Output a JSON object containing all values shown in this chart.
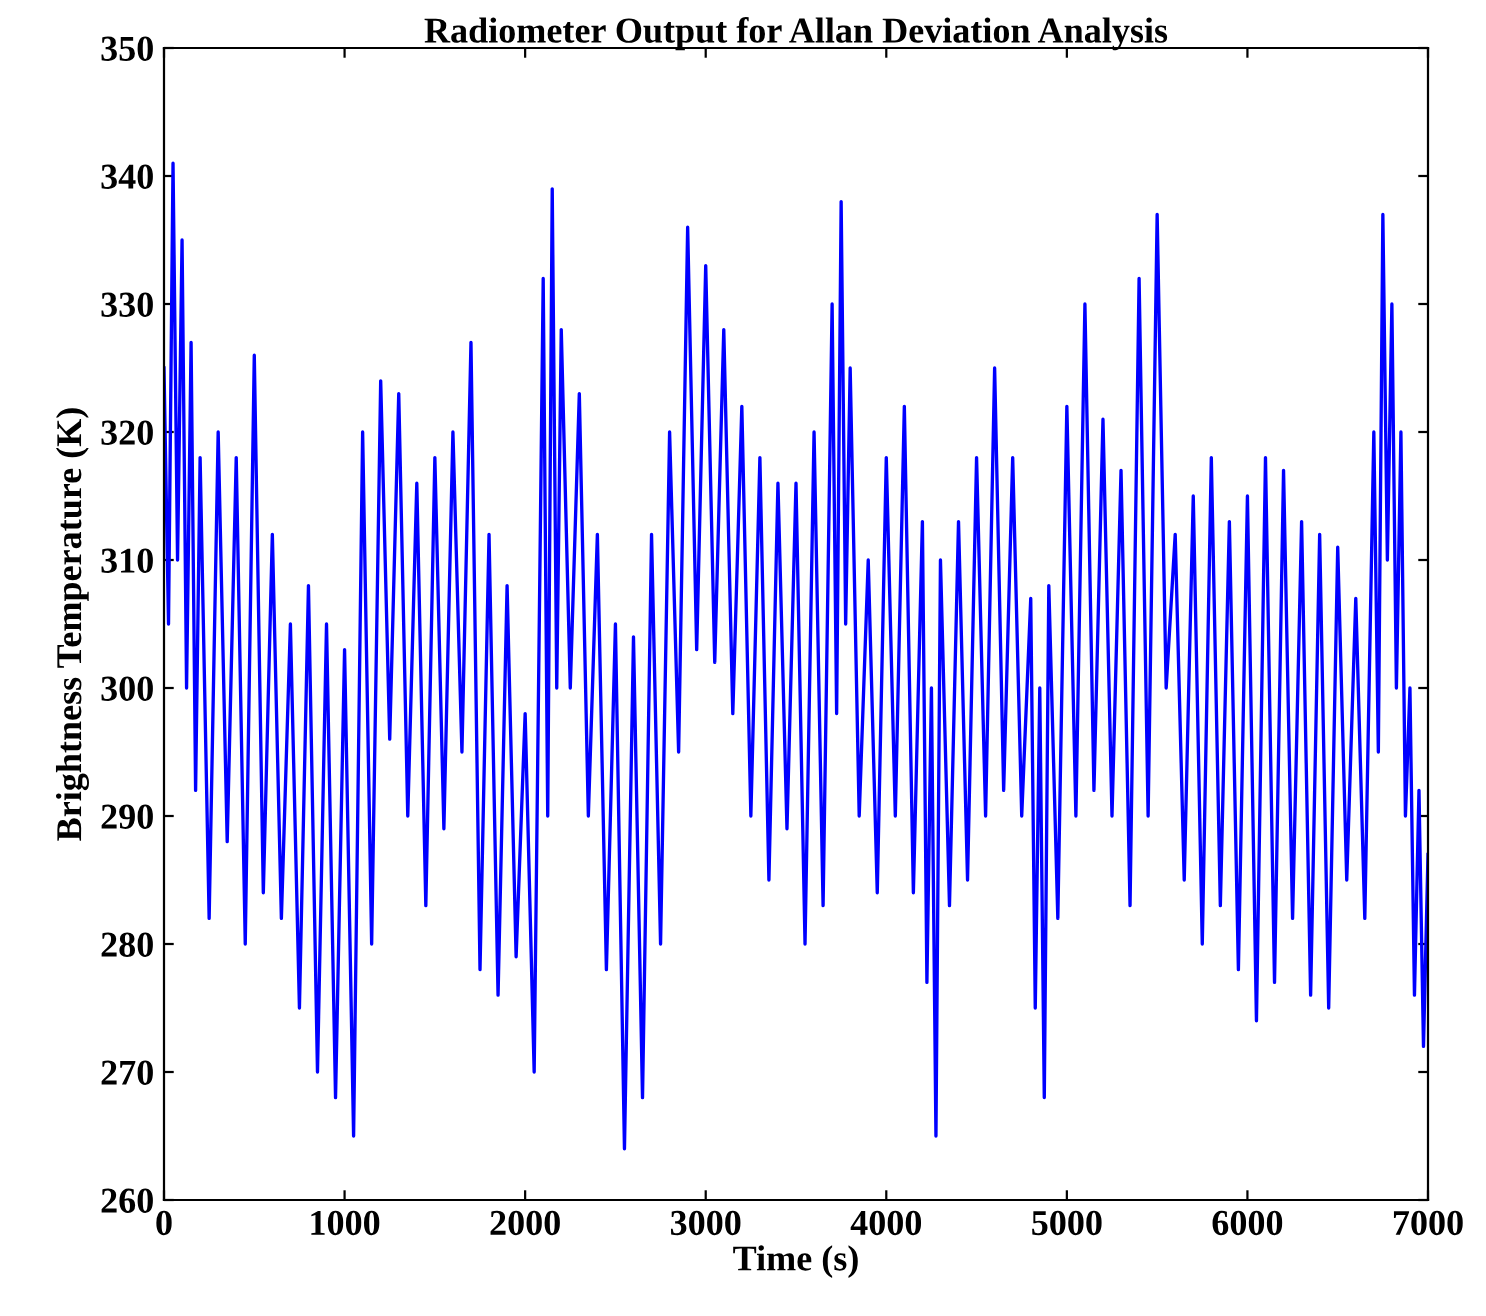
{
  "chart_data": {
    "type": "line",
    "title": "Radiometer Output for Allan Deviation Analysis",
    "xlabel": "Time (s)",
    "ylabel": "Brightness Temperature (K)",
    "xlim": [
      0,
      7000
    ],
    "xticks": [
      0,
      1000,
      2000,
      3000,
      4000,
      5000,
      6000,
      7000
    ],
    "ylim": [
      260,
      350
    ],
    "yticks": [
      260,
      270,
      280,
      290,
      300,
      310,
      320,
      330,
      340,
      350
    ],
    "grid": false,
    "legend": false,
    "series": [
      {
        "color": "#0000ff",
        "x": [
          0,
          25,
          50,
          75,
          100,
          125,
          150,
          175,
          200,
          250,
          300,
          350,
          400,
          450,
          500,
          550,
          600,
          650,
          700,
          750,
          800,
          850,
          900,
          950,
          1000,
          1050,
          1100,
          1150,
          1200,
          1250,
          1300,
          1350,
          1400,
          1450,
          1500,
          1550,
          1600,
          1650,
          1700,
          1750,
          1800,
          1850,
          1900,
          1950,
          2000,
          2050,
          2100,
          2125,
          2150,
          2175,
          2200,
          2250,
          2300,
          2350,
          2400,
          2450,
          2500,
          2550,
          2600,
          2650,
          2700,
          2750,
          2800,
          2850,
          2900,
          2950,
          3000,
          3050,
          3100,
          3150,
          3200,
          3250,
          3300,
          3350,
          3400,
          3450,
          3500,
          3550,
          3600,
          3650,
          3700,
          3725,
          3750,
          3775,
          3800,
          3850,
          3900,
          3950,
          4000,
          4050,
          4100,
          4150,
          4200,
          4225,
          4250,
          4275,
          4300,
          4350,
          4400,
          4450,
          4500,
          4550,
          4600,
          4650,
          4700,
          4750,
          4800,
          4825,
          4850,
          4875,
          4900,
          4950,
          5000,
          5050,
          5100,
          5150,
          5200,
          5250,
          5300,
          5350,
          5400,
          5450,
          5500,
          5550,
          5600,
          5650,
          5700,
          5750,
          5800,
          5850,
          5900,
          5950,
          6000,
          6050,
          6100,
          6150,
          6200,
          6250,
          6300,
          6350,
          6400,
          6450,
          6500,
          6550,
          6600,
          6650,
          6700,
          6725,
          6750,
          6775,
          6800,
          6825,
          6850,
          6875,
          6900,
          6925,
          6950,
          6975,
          7000
        ],
        "values": [
          325,
          305,
          341,
          310,
          335,
          300,
          327,
          292,
          318,
          282,
          320,
          288,
          318,
          280,
          326,
          284,
          312,
          282,
          305,
          275,
          308,
          270,
          305,
          268,
          303,
          265,
          320,
          280,
          324,
          296,
          323,
          290,
          316,
          283,
          318,
          289,
          320,
          295,
          327,
          278,
          312,
          276,
          308,
          279,
          298,
          270,
          332,
          290,
          339,
          300,
          328,
          300,
          323,
          290,
          312,
          278,
          305,
          264,
          304,
          268,
          312,
          280,
          320,
          295,
          336,
          303,
          333,
          302,
          328,
          298,
          322,
          290,
          318,
          285,
          316,
          289,
          316,
          280,
          320,
          283,
          330,
          298,
          338,
          305,
          325,
          290,
          310,
          284,
          318,
          290,
          322,
          284,
          313,
          277,
          300,
          265,
          310,
          283,
          313,
          285,
          318,
          290,
          325,
          292,
          318,
          290,
          307,
          275,
          300,
          268,
          308,
          282,
          322,
          290,
          330,
          292,
          321,
          290,
          317,
          283,
          332,
          290,
          337,
          300,
          312,
          285,
          315,
          280,
          318,
          283,
          313,
          278,
          315,
          274,
          318,
          277,
          317,
          282,
          313,
          276,
          312,
          275,
          311,
          285,
          307,
          282,
          320,
          295,
          337,
          310,
          330,
          300,
          320,
          290,
          300,
          276,
          292,
          272,
          287
        ]
      }
    ]
  }
}
